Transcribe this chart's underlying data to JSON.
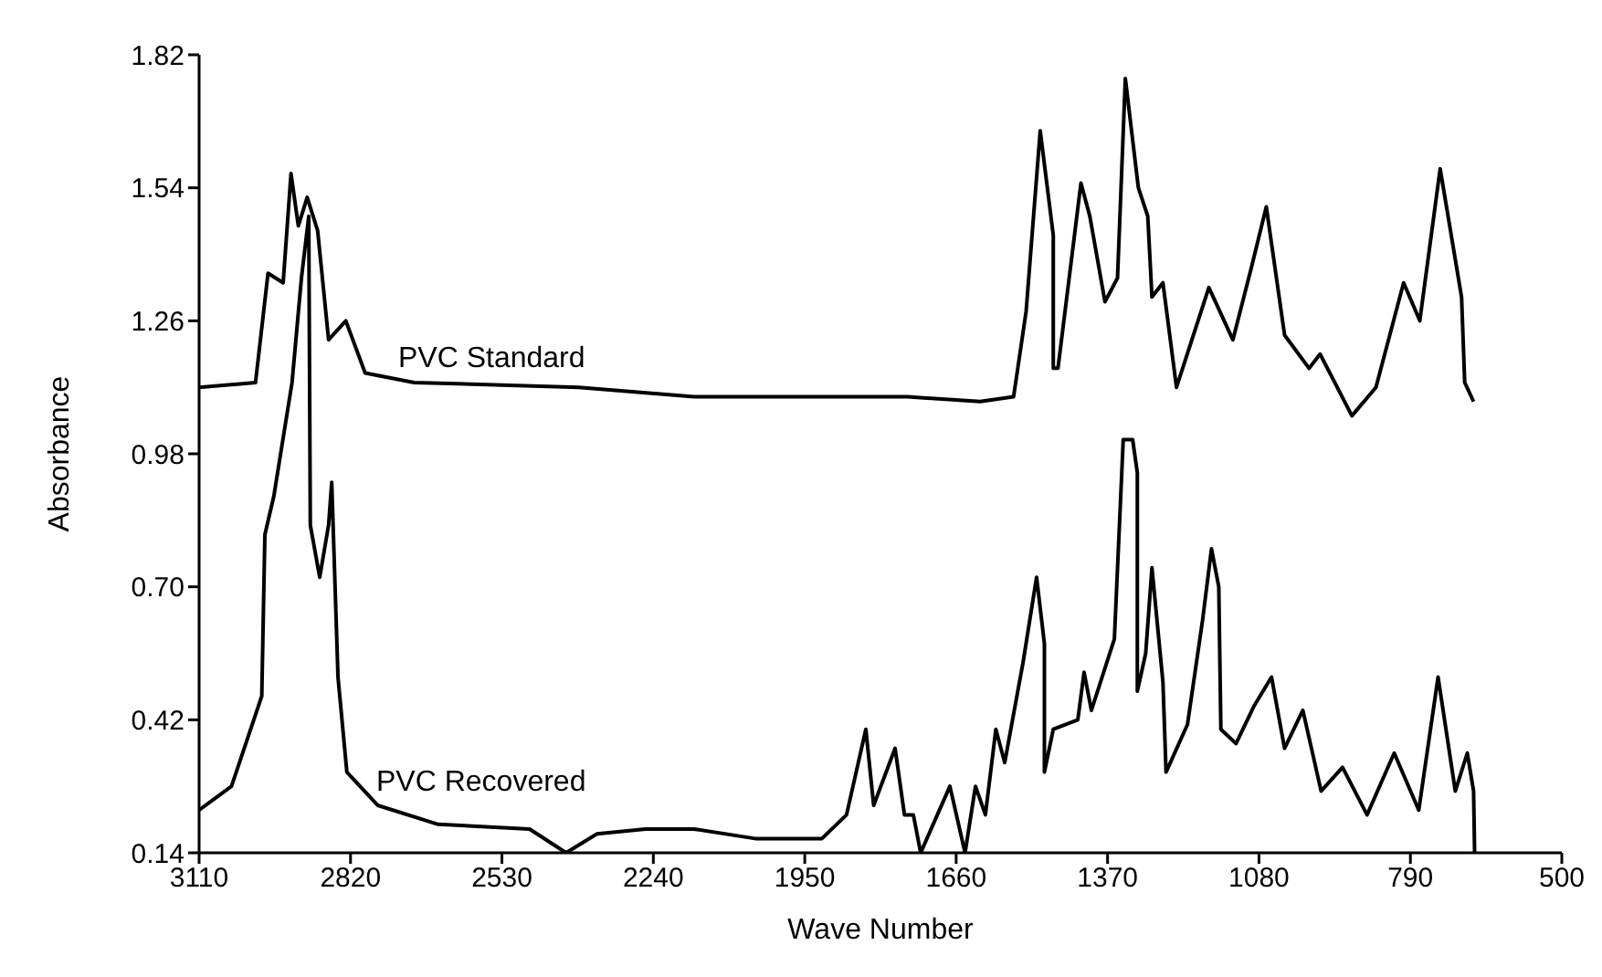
{
  "chart_data": {
    "type": "line",
    "xlabel": "Wave Number",
    "ylabel": "Absorbance",
    "xlim": [
      3110,
      500
    ],
    "xticks": [
      3110,
      2820,
      2530,
      2240,
      1950,
      1660,
      1370,
      1080,
      790,
      500
    ],
    "ylim": [
      0.14,
      1.82
    ],
    "yticks": [
      0.14,
      0.42,
      {
        "value": 0.7,
        "label": "0.70"
      },
      0.98,
      1.26,
      1.54,
      1.82
    ],
    "grid": false,
    "legend": false,
    "series": [
      {
        "name": "PVC Standard",
        "color": "#000000",
        "x": [
          3110,
          3002,
          2978,
          2949,
          2934,
          2920,
          2903,
          2883,
          2862,
          2829,
          2792,
          2698,
          2383,
          2162,
          1753,
          1614,
          1550,
          1526,
          1499,
          1474,
          1474,
          1465,
          1421,
          1404,
          1375,
          1351,
          1336,
          1311,
          1293,
          1285,
          1264,
          1238,
          1176,
          1130,
          1095,
          1066,
          1031,
          984,
          963,
          902,
          856,
          803,
          772,
          733,
          692,
          686,
          669
        ],
        "values": [
          1.12,
          1.13,
          1.36,
          1.34,
          1.57,
          1.46,
          1.52,
          1.45,
          1.22,
          1.26,
          1.15,
          1.13,
          1.12,
          1.1,
          1.1,
          1.09,
          1.1,
          1.28,
          1.66,
          1.44,
          1.16,
          1.16,
          1.55,
          1.48,
          1.3,
          1.35,
          1.77,
          1.54,
          1.48,
          1.31,
          1.34,
          1.12,
          1.33,
          1.22,
          1.37,
          1.5,
          1.23,
          1.16,
          1.19,
          1.06,
          1.12,
          1.34,
          1.26,
          1.58,
          1.31,
          1.13,
          1.09
        ]
      },
      {
        "name": "PVC Recovered",
        "color": "#000000",
        "x": [
          3110,
          3048,
          2990,
          2984,
          2967,
          2932,
          2914,
          2900,
          2897,
          2879,
          2862,
          2856,
          2844,
          2827,
          2768,
          2652,
          2477,
          2407,
          2348,
          2255,
          2162,
          2045,
          1917,
          1870,
          1833,
          1818,
          1777,
          1759,
          1742,
          1728,
          1672,
          1643,
          1623,
          1604,
          1584,
          1567,
          1532,
          1506,
          1491,
          1491,
          1474,
          1427,
          1415,
          1401,
          1357,
          1340,
          1322,
          1313,
          1313,
          1297,
          1285,
          1264,
          1258,
          1217,
          1188,
          1171,
          1157,
          1153,
          1124,
          1089,
          1056,
          1031,
          996,
          961,
          920,
          873,
          821,
          774,
          737,
          704,
          681,
          669,
          667
        ],
        "values": [
          0.23,
          0.28,
          0.47,
          0.81,
          0.89,
          1.13,
          1.35,
          1.48,
          0.83,
          0.72,
          0.83,
          0.92,
          0.51,
          0.31,
          0.24,
          0.2,
          0.19,
          0.14,
          0.18,
          0.19,
          0.19,
          0.17,
          0.17,
          0.22,
          0.4,
          0.24,
          0.36,
          0.22,
          0.22,
          0.14,
          0.28,
          0.14,
          0.28,
          0.22,
          0.4,
          0.33,
          0.54,
          0.72,
          0.58,
          0.31,
          0.4,
          0.42,
          0.52,
          0.44,
          0.59,
          1.01,
          1.01,
          0.94,
          0.48,
          0.56,
          0.74,
          0.5,
          0.31,
          0.41,
          0.63,
          0.78,
          0.7,
          0.4,
          0.37,
          0.45,
          0.51,
          0.36,
          0.44,
          0.27,
          0.32,
          0.22,
          0.35,
          0.23,
          0.51,
          0.27,
          0.35,
          0.27,
          0.14
        ]
      }
    ]
  }
}
